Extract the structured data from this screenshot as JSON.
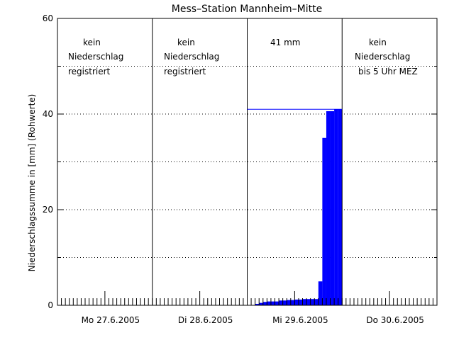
{
  "chart_data": {
    "type": "area",
    "title": "Mess–Station Mannheim–Mitte",
    "xlabel": "",
    "ylabel": "Niederschlagssumme in [mm] (Rohwerte)",
    "ylim": [
      0,
      60
    ],
    "yticks": [
      0,
      20,
      40,
      60
    ],
    "ygrid_dotted": [
      10,
      30,
      50
    ],
    "xlim_hours": [
      0,
      96
    ],
    "days": [
      {
        "label": "Mo  27.6.2005",
        "annotation": [
          "kein",
          "Niederschlag",
          "registriert"
        ]
      },
      {
        "label": "Di  28.6.2005",
        "annotation": [
          "kein",
          "Niederschlag",
          "registriert"
        ]
      },
      {
        "label": "Mi  29.6.2005",
        "annotation": [
          "41 mm"
        ]
      },
      {
        "label": "Do  30.6.2005",
        "annotation": [
          "kein",
          "Niederschlag",
          "bis 5 Uhr MEZ"
        ]
      }
    ],
    "series": [
      {
        "color": "#0000ff",
        "x_hours": [
          48,
          49,
          50,
          51,
          52,
          53,
          54,
          55,
          56,
          57,
          58,
          59,
          60,
          61,
          62,
          63,
          64,
          65,
          66,
          67,
          68,
          69,
          70,
          71,
          72
        ],
        "values": [
          0,
          0,
          0.3,
          0.5,
          0.7,
          0.8,
          0.8,
          0.8,
          1.0,
          1.0,
          1.1,
          1.1,
          1.2,
          1.2,
          1.3,
          1.3,
          1.3,
          1.3,
          5.0,
          35.0,
          40.6,
          40.6,
          41.0,
          41.0,
          41.0
        ]
      }
    ],
    "total_line": {
      "value": 41,
      "from_hour": 48,
      "to_hour": 72,
      "color": "#0000ff"
    }
  }
}
